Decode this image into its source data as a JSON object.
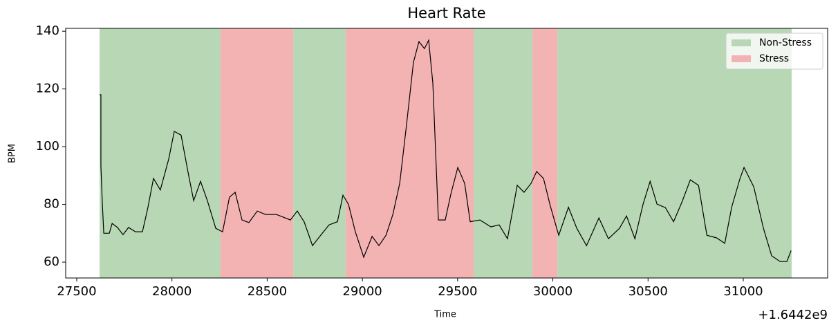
{
  "chart_data": {
    "type": "line",
    "title": "Heart Rate",
    "x_label": "Time",
    "y_label": "BPM",
    "x_offset_label": "+1.6442e9",
    "xlim": [
      27442,
      31443
    ],
    "ylim": [
      54.5,
      141
    ],
    "xticks": [
      27500,
      28000,
      28500,
      29000,
      29500,
      30000,
      30500,
      31000
    ],
    "yticks": [
      60,
      80,
      100,
      120,
      140
    ],
    "legend_position": "upper right",
    "legend": [
      {
        "name": "Non-Stress",
        "color": "#b8d7b4"
      },
      {
        "name": "Stress",
        "color": "#f3b3b3"
      }
    ],
    "regions": [
      {
        "start": 27620,
        "end": 28255,
        "color": "#b8d7b4"
      },
      {
        "start": 28255,
        "end": 28637,
        "color": "#f3b3b3"
      },
      {
        "start": 28637,
        "end": 28912,
        "color": "#b8d7b4"
      },
      {
        "start": 28912,
        "end": 29584,
        "color": "#f3b3b3"
      },
      {
        "start": 29584,
        "end": 29893,
        "color": "#b8d7b4"
      },
      {
        "start": 29893,
        "end": 30024,
        "color": "#f3b3b3"
      },
      {
        "start": 30024,
        "end": 31254,
        "color": "#b8d7b4"
      }
    ],
    "x": [
      27620,
      27627,
      27627,
      27634,
      27642,
      27671,
      27686,
      27714,
      27743,
      27772,
      27809,
      27845,
      27874,
      27903,
      27939,
      27983,
      28012,
      28048,
      28085,
      28114,
      28150,
      28186,
      28230,
      28266,
      28302,
      28332,
      28368,
      28404,
      28448,
      28491,
      28549,
      28622,
      28658,
      28694,
      28738,
      28781,
      28825,
      28869,
      28898,
      28927,
      28963,
      29007,
      29051,
      29087,
      29124,
      29160,
      29196,
      29232,
      29268,
      29297,
      29326,
      29348,
      29370,
      29399,
      29435,
      29465,
      29501,
      29537,
      29566,
      29617,
      29675,
      29718,
      29762,
      29813,
      29849,
      29886,
      29915,
      29951,
      29987,
      30031,
      30082,
      30126,
      30177,
      30242,
      30292,
      30350,
      30387,
      30431,
      30474,
      30511,
      30547,
      30591,
      30634,
      30678,
      30722,
      30765,
      30809,
      30860,
      30903,
      30939,
      30983,
      31004,
      31055,
      31106,
      31149,
      31193,
      31229,
      31251
    ],
    "series": [
      {
        "color": "#000000",
        "values": [
          118,
          118,
          93.3,
          81,
          70,
          70,
          73.4,
          72,
          69.5,
          72,
          70.5,
          70.5,
          79,
          89,
          85,
          95.7,
          105.3,
          104,
          91,
          81.3,
          88,
          81.3,
          71.7,
          70.5,
          82.5,
          84.2,
          74.6,
          73.7,
          77.7,
          76.5,
          76.5,
          74.6,
          77.7,
          74,
          65.7,
          69.3,
          72.9,
          74,
          83.2,
          80,
          70.5,
          61.7,
          68.9,
          65.7,
          69.3,
          76.5,
          87.3,
          107.7,
          129.2,
          136.4,
          134,
          136.9,
          122,
          74.6,
          74.6,
          83.7,
          92.8,
          87.3,
          74,
          74.6,
          72.2,
          72.9,
          68.1,
          86.6,
          84.2,
          87.3,
          91.4,
          89,
          79.4,
          69.3,
          79,
          71.7,
          65.7,
          75.3,
          68.1,
          71.7,
          76,
          68.1,
          80.1,
          88,
          80.1,
          78.9,
          74,
          80.8,
          88.5,
          86.6,
          69.3,
          68.4,
          66.5,
          79,
          89,
          92.8,
          86.1,
          71.7,
          62.2,
          60.2,
          60.2,
          64
        ]
      }
    ]
  }
}
